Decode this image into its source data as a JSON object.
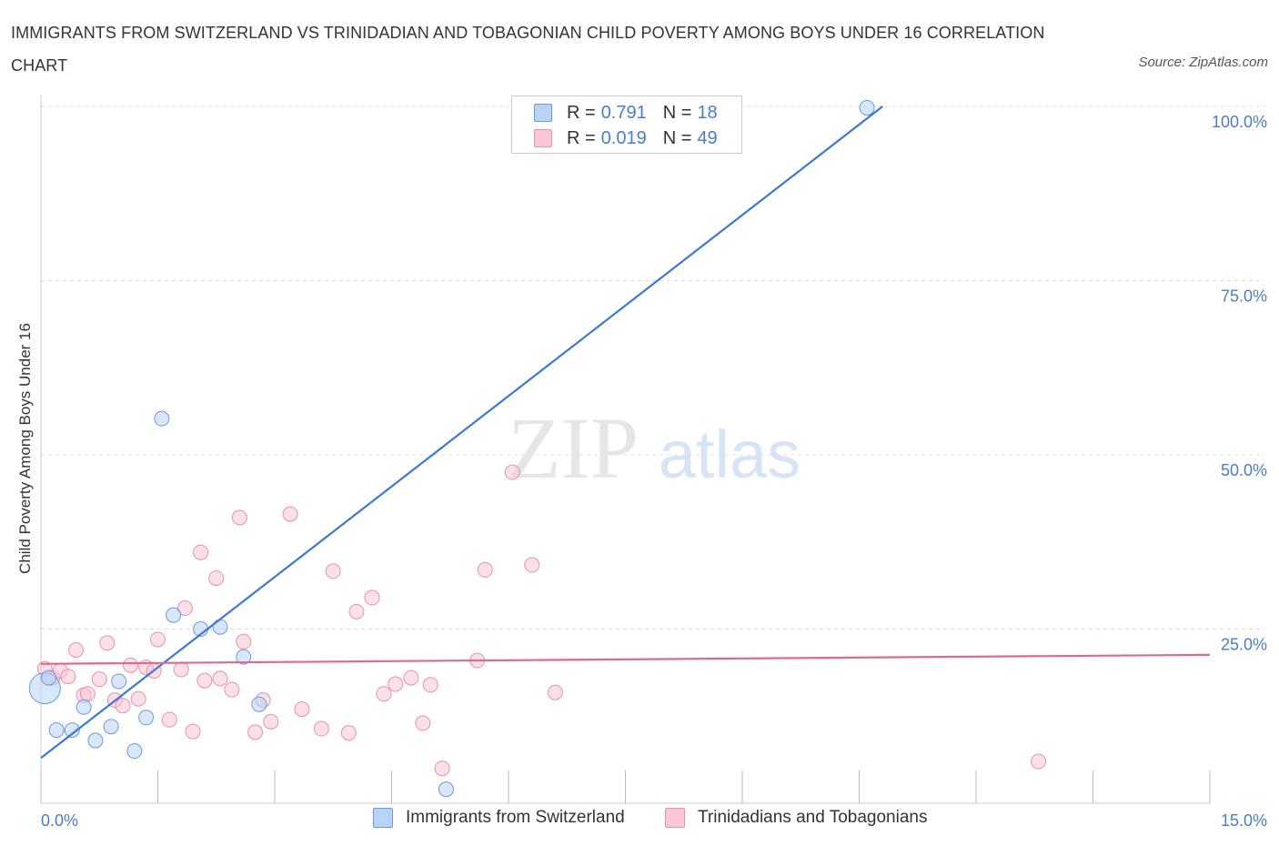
{
  "title": "IMMIGRANTS FROM SWITZERLAND VS TRINIDADIAN AND TOBAGONIAN CHILD POVERTY AMONG BOYS UNDER 16 CORRELATION CHART",
  "source": "Source: ZipAtlas.com",
  "watermark": {
    "zip": "ZIP",
    "atlas": "atlas"
  },
  "legend": {
    "r_label": "R =",
    "n_label": "N =",
    "rows": [
      {
        "r": "0.791",
        "n": "18"
      },
      {
        "r": "0.019",
        "n": "49"
      }
    ]
  },
  "bottom_legend": [
    "Immigrants from Switzerland",
    "Trinidadians and Tobagonians"
  ],
  "colors": {
    "blue": "#3a78d4",
    "blue_fill": "#b8d3f5",
    "pink": "#e06890",
    "pink_fill": "#f8c6d6",
    "tick_text": "#4a7cc9"
  },
  "chart_data": {
    "type": "scatter",
    "title": "IMMIGRANTS FROM SWITZERLAND VS TRINIDADIAN AND TOBAGONIAN CHILD POVERTY AMONG BOYS UNDER 16 CORRELATION CHART",
    "xlabel": "",
    "ylabel": "Child Poverty Among Boys Under 16",
    "xlim": [
      0,
      15
    ],
    "ylim": [
      0,
      100
    ],
    "x_tick_labels": [
      "0.0%",
      "15.0%"
    ],
    "y_tick_values": [
      25,
      50,
      75,
      100
    ],
    "y_tick_labels": [
      "25.0%",
      "50.0%",
      "75.0%",
      "100.0%"
    ],
    "grid": true,
    "series": [
      {
        "name": "Immigrants from Switzerland",
        "color": "blue",
        "r": 0.791,
        "n": 18,
        "points": [
          [
            0.05,
            16.5,
            3
          ],
          [
            0.2,
            10.5,
            1
          ],
          [
            0.4,
            10.5,
            1
          ],
          [
            0.55,
            13.8,
            1
          ],
          [
            0.7,
            9.0,
            1
          ],
          [
            0.9,
            11.0,
            1
          ],
          [
            1.0,
            17.5,
            1
          ],
          [
            1.2,
            7.5,
            1
          ],
          [
            1.35,
            12.3,
            1
          ],
          [
            1.55,
            55.2,
            1
          ],
          [
            1.7,
            27.0,
            1
          ],
          [
            2.05,
            25.0,
            1
          ],
          [
            2.3,
            25.3,
            1
          ],
          [
            2.6,
            21.0,
            1
          ],
          [
            2.8,
            14.2,
            1
          ],
          [
            5.2,
            2.0,
            1
          ],
          [
            10.6,
            99.8,
            1
          ],
          [
            0.1,
            18.0,
            1
          ]
        ],
        "trendline": {
          "x": [
            0.0,
            10.8
          ],
          "y": [
            6.5,
            100.0
          ]
        }
      },
      {
        "name": "Trinidadians and Tobagonians",
        "color": "pink",
        "points": [
          [
            0.05,
            19.3,
            1
          ],
          [
            0.15,
            18.0,
            1
          ],
          [
            0.25,
            19.0,
            1
          ],
          [
            0.35,
            18.2,
            1
          ],
          [
            0.45,
            22.0,
            1
          ],
          [
            0.55,
            15.5,
            1
          ],
          [
            0.6,
            15.7,
            1
          ],
          [
            0.75,
            17.8,
            1
          ],
          [
            0.85,
            23.0,
            1
          ],
          [
            0.95,
            14.8,
            1
          ],
          [
            1.05,
            14.0,
            1
          ],
          [
            1.15,
            19.8,
            1
          ],
          [
            1.25,
            15.0,
            1
          ],
          [
            1.35,
            19.5,
            1
          ],
          [
            1.45,
            19.0,
            1
          ],
          [
            1.5,
            23.5,
            1
          ],
          [
            1.65,
            12.0,
            1
          ],
          [
            1.8,
            19.2,
            1
          ],
          [
            1.85,
            28.0,
            1
          ],
          [
            1.95,
            10.3,
            1
          ],
          [
            2.05,
            36.0,
            1
          ],
          [
            2.1,
            17.6,
            1
          ],
          [
            2.25,
            32.3,
            1
          ],
          [
            2.3,
            17.9,
            1
          ],
          [
            2.45,
            16.3,
            1
          ],
          [
            2.55,
            41.0,
            1
          ],
          [
            2.6,
            23.2,
            1
          ],
          [
            2.75,
            10.2,
            1
          ],
          [
            2.85,
            14.8,
            1
          ],
          [
            2.95,
            11.7,
            1
          ],
          [
            3.2,
            41.5,
            1
          ],
          [
            3.35,
            13.5,
            1
          ],
          [
            3.6,
            10.7,
            1
          ],
          [
            3.75,
            33.3,
            1
          ],
          [
            3.95,
            10.1,
            1
          ],
          [
            4.05,
            27.5,
            1
          ],
          [
            4.25,
            29.5,
            1
          ],
          [
            4.4,
            15.7,
            1
          ],
          [
            4.55,
            17.1,
            1
          ],
          [
            4.75,
            18.0,
            1
          ],
          [
            4.9,
            11.5,
            1
          ],
          [
            5.0,
            17.0,
            1
          ],
          [
            5.15,
            5.0,
            1
          ],
          [
            5.6,
            20.5,
            1
          ],
          [
            5.7,
            33.5,
            1
          ],
          [
            6.05,
            47.5,
            1
          ],
          [
            6.3,
            34.2,
            1
          ],
          [
            6.6,
            15.9,
            1
          ],
          [
            12.8,
            6.0,
            1
          ]
        ],
        "r": 0.019,
        "n": 49,
        "trendline": {
          "x": [
            0.0,
            15.0
          ],
          "y": [
            20.0,
            21.3
          ]
        }
      }
    ]
  }
}
